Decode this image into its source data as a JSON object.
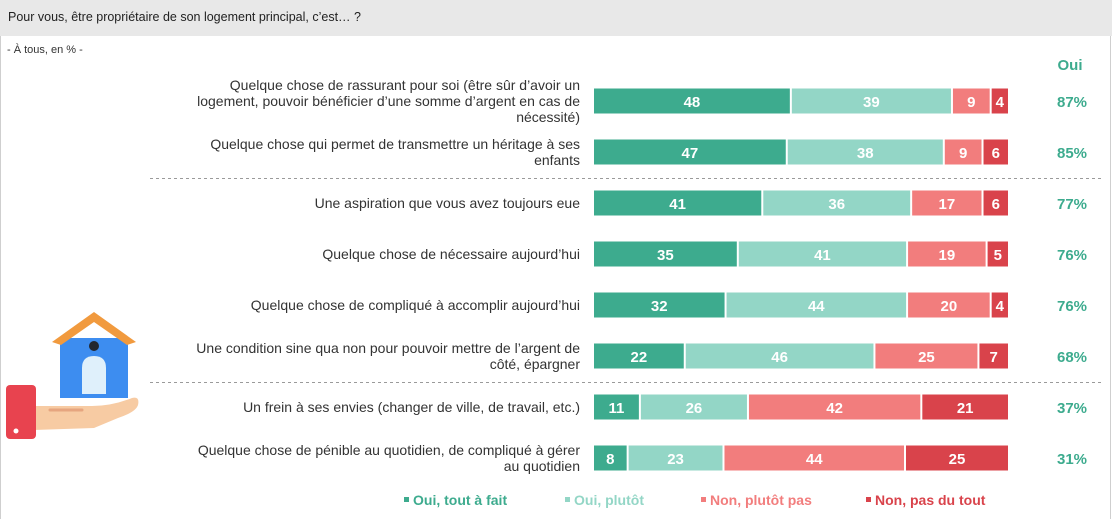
{
  "header": {
    "title": "Pour vous, être propriétaire de son logement principal, c’est… ?",
    "subtitle": "- À tous, en % -"
  },
  "chart_data": {
    "type": "bar",
    "orientation": "horizontal",
    "stacked": true,
    "categories": [
      [
        "Quelque chose de rassurant pour soi (être sûr d’avoir un",
        "logement, pouvoir bénéficier d’une somme d’argent en cas de",
        "nécessité)"
      ],
      [
        "Quelque chose qui permet de transmettre un héritage à ses",
        "enfants"
      ],
      [
        "Une aspiration que vous avez toujours eue"
      ],
      [
        "Quelque chose de nécessaire aujourd’hui"
      ],
      [
        "Quelque chose de compliqué à accomplir aujourd’hui"
      ],
      [
        "Une condition sine qua non pour pouvoir mettre de l’argent de",
        "côté, épargner"
      ],
      [
        "Un frein à ses envies (changer de ville, de travail, etc.)"
      ],
      [
        "Quelque chose de pénible au quotidien, de compliqué à gérer",
        "au quotidien"
      ]
    ],
    "series": [
      {
        "name": "Oui, tout à fait",
        "color": "#3dab8e",
        "values": [
          48,
          47,
          41,
          35,
          32,
          22,
          11,
          8
        ]
      },
      {
        "name": "Oui, plutôt",
        "color": "#93d6c6",
        "values": [
          39,
          38,
          36,
          41,
          44,
          46,
          26,
          23
        ]
      },
      {
        "name": "Non, plutôt pas",
        "color": "#f27d7d",
        "values": [
          9,
          9,
          17,
          19,
          20,
          25,
          42,
          44
        ]
      },
      {
        "name": "Non, pas du tout",
        "color": "#d9434b",
        "values": [
          4,
          6,
          6,
          5,
          4,
          7,
          21,
          25
        ]
      }
    ],
    "oui_header": "Oui",
    "oui_values": [
      "87%",
      "85%",
      "77%",
      "76%",
      "76%",
      "68%",
      "37%",
      "31%"
    ],
    "group_separators_after": [
      1,
      5
    ],
    "xlim": [
      0,
      100
    ],
    "legend_position": "bottom"
  }
}
